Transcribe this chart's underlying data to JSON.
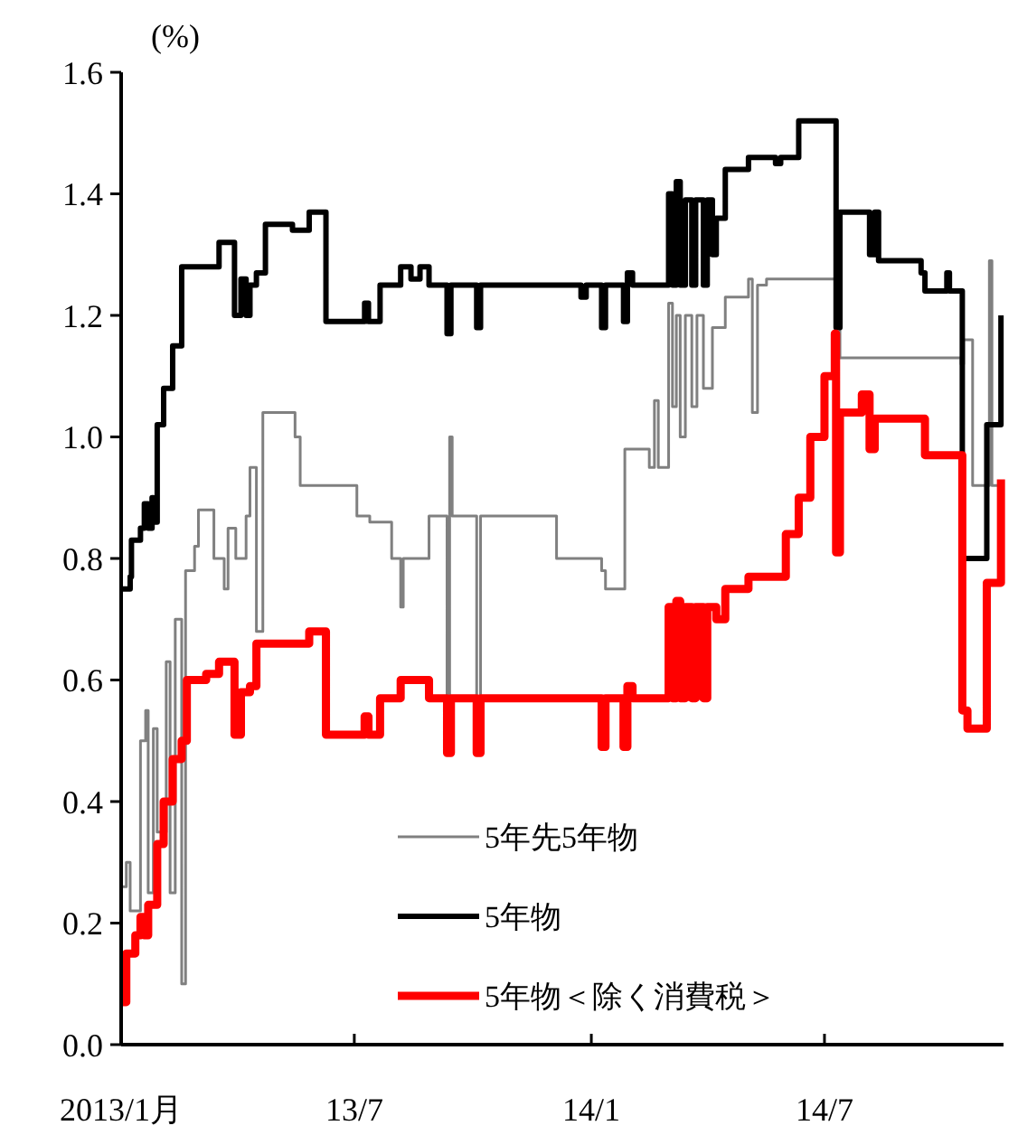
{
  "chart_data": {
    "type": "step",
    "ylabel": "(%)",
    "xlim": [
      "2013-01-01",
      "2014-11-17"
    ],
    "xticks": [
      {
        "value": "2013-01-01",
        "label": "2013/1月"
      },
      {
        "value": "2013-07-01",
        "label": "13/7"
      },
      {
        "value": "2014-01-01",
        "label": "14/1"
      },
      {
        "value": "2014-07-01",
        "label": "14/7"
      }
    ],
    "ylim": [
      0,
      1.6
    ],
    "yticks": [
      {
        "value": 0,
        "label": "0.0"
      },
      0.2,
      0.4,
      0.6,
      0.8,
      {
        "value": 1,
        "label": "1.0"
      },
      1.2,
      1.4,
      1.6
    ],
    "grid": false,
    "legend": "bottom",
    "line_style": "solid",
    "series": [
      {
        "name": "5年先5年物",
        "color": "#808080",
        "x": [
          "2013-01-01",
          "2013-01-05",
          "2013-01-08",
          "2013-01-16",
          "2013-01-20",
          "2013-01-22",
          "2013-01-26",
          "2013-01-29",
          "2013-02-05",
          "2013-02-08",
          "2013-02-12",
          "2013-02-17",
          "2013-02-20",
          "2013-02-27",
          "2013-03-02",
          "2013-03-10",
          "2013-03-14",
          "2013-03-22",
          "2013-03-25",
          "2013-03-31",
          "2013-04-08",
          "2013-04-11",
          "2013-04-16",
          "2013-04-21",
          "2013-05-09",
          "2013-05-16",
          "2013-05-20",
          "2013-07-01",
          "2013-07-03",
          "2013-07-13",
          "2013-07-30",
          "2013-08-06",
          "2013-08-08",
          "2013-08-28",
          "2013-09-11",
          "2013-09-13",
          "2013-09-15",
          "2013-10-04",
          "2013-10-07",
          "2013-12-01",
          "2013-12-05",
          "2014-01-09",
          "2014-01-12",
          "2014-01-26",
          "2014-01-27",
          "2014-02-15",
          "2014-02-19",
          "2014-02-22",
          "2014-03-01",
          "2014-03-02",
          "2014-03-05",
          "2014-03-08",
          "2014-03-11",
          "2014-03-15",
          "2014-03-20",
          "2014-03-24",
          "2014-03-29",
          "2014-04-05",
          "2014-04-15",
          "2014-05-03",
          "2014-05-06",
          "2014-05-10",
          "2014-05-17",
          "2014-07-09",
          "2014-07-13",
          "2014-10-15",
          "2014-10-17",
          "2014-10-24",
          "2014-11-06",
          "2014-11-08",
          "2014-11-15"
        ],
        "values": [
          0.26,
          0.3,
          0.22,
          0.5,
          0.55,
          0.25,
          0.52,
          0.35,
          0.63,
          0.25,
          0.7,
          0.1,
          0.78,
          0.82,
          0.88,
          0.88,
          0.8,
          0.75,
          0.85,
          0.8,
          0.87,
          0.95,
          0.68,
          1.04,
          1.04,
          1.0,
          0.92,
          0.92,
          0.87,
          0.86,
          0.8,
          0.72,
          0.8,
          0.87,
          0.57,
          1.0,
          0.87,
          0.57,
          0.87,
          0.87,
          0.8,
          0.78,
          0.75,
          0.75,
          0.98,
          0.95,
          1.06,
          0.95,
          0.95,
          1.22,
          1.05,
          1.2,
          1.0,
          1.2,
          1.05,
          1.2,
          1.08,
          1.18,
          1.23,
          1.26,
          1.04,
          1.25,
          1.26,
          1.26,
          1.13,
          1.12,
          1.16,
          0.92,
          1.29,
          0.92,
          0.92
        ]
      },
      {
        "name": "5年物",
        "color": "#000000",
        "x": [
          "2013-01-01",
          "2013-01-08",
          "2013-01-09",
          "2013-01-16",
          "2013-01-19",
          "2013-01-22",
          "2013-01-25",
          "2013-01-26",
          "2013-01-29",
          "2013-02-03",
          "2013-02-10",
          "2013-02-17",
          "2013-03-18",
          "2013-03-30",
          "2013-04-04",
          "2013-04-08",
          "2013-04-11",
          "2013-04-16",
          "2013-04-23",
          "2013-05-14",
          "2013-05-27",
          "2013-06-09",
          "2013-07-05",
          "2013-07-09",
          "2013-07-12",
          "2013-07-21",
          "2013-08-06",
          "2013-08-14",
          "2013-08-21",
          "2013-08-28",
          "2013-09-11",
          "2013-09-14",
          "2013-10-04",
          "2013-10-07",
          "2013-12-24",
          "2013-12-28",
          "2014-01-09",
          "2014-01-12",
          "2014-01-26",
          "2014-01-29",
          "2014-02-02",
          "2014-03-02",
          "2014-03-05",
          "2014-03-08",
          "2014-03-11",
          "2014-03-15",
          "2014-03-20",
          "2014-03-23",
          "2014-03-29",
          "2014-04-01",
          "2014-04-05",
          "2014-04-08",
          "2014-04-15",
          "2014-05-03",
          "2014-05-24",
          "2014-05-28",
          "2014-06-11",
          "2014-07-10",
          "2014-07-13",
          "2014-08-05",
          "2014-08-09",
          "2014-08-12",
          "2014-09-14",
          "2014-09-17",
          "2014-10-01",
          "2014-10-04",
          "2014-10-06",
          "2014-10-16",
          "2014-11-04",
          "2014-11-15"
        ],
        "values": [
          0.75,
          0.77,
          0.83,
          0.85,
          0.89,
          0.85,
          0.9,
          0.86,
          1.02,
          1.08,
          1.15,
          1.28,
          1.32,
          1.2,
          1.26,
          1.2,
          1.25,
          1.27,
          1.35,
          1.34,
          1.37,
          1.19,
          1.19,
          1.22,
          1.19,
          1.25,
          1.28,
          1.26,
          1.28,
          1.25,
          1.17,
          1.25,
          1.18,
          1.25,
          1.23,
          1.25,
          1.18,
          1.25,
          1.19,
          1.27,
          1.25,
          1.4,
          1.25,
          1.42,
          1.25,
          1.39,
          1.25,
          1.39,
          1.25,
          1.39,
          1.3,
          1.36,
          1.44,
          1.46,
          1.45,
          1.46,
          1.52,
          1.18,
          1.37,
          1.3,
          1.37,
          1.29,
          1.27,
          1.24,
          1.24,
          1.27,
          1.24,
          0.8,
          1.02,
          1.2
        ]
      },
      {
        "name": "5年物＜除く消費税＞",
        "color": "#ff0000",
        "x": [
          "2013-01-01",
          "2013-01-05",
          "2013-01-12",
          "2013-01-16",
          "2013-01-19",
          "2013-01-22",
          "2013-01-29",
          "2013-02-03",
          "2013-02-10",
          "2013-02-17",
          "2013-02-21",
          "2013-03-08",
          "2013-03-18",
          "2013-03-30",
          "2013-04-04",
          "2013-04-11",
          "2013-04-16",
          "2013-05-14",
          "2013-05-27",
          "2013-06-09",
          "2013-07-05",
          "2013-07-09",
          "2013-07-12",
          "2013-07-21",
          "2013-08-06",
          "2013-08-21",
          "2013-08-28",
          "2013-09-11",
          "2013-09-14",
          "2013-10-04",
          "2013-10-07",
          "2014-01-09",
          "2014-01-12",
          "2014-01-26",
          "2014-01-29",
          "2014-02-02",
          "2014-03-02",
          "2014-03-05",
          "2014-03-08",
          "2014-03-11",
          "2014-03-15",
          "2014-03-20",
          "2014-03-23",
          "2014-03-29",
          "2014-04-01",
          "2014-04-08",
          "2014-04-15",
          "2014-05-03",
          "2014-05-29",
          "2014-06-01",
          "2014-06-11",
          "2014-06-20",
          "2014-07-01",
          "2014-07-09",
          "2014-07-10",
          "2014-07-13",
          "2014-07-30",
          "2014-08-05",
          "2014-08-09",
          "2014-09-17",
          "2014-10-16",
          "2014-10-20",
          "2014-11-04",
          "2014-11-15"
        ],
        "values": [
          0.07,
          0.15,
          0.18,
          0.21,
          0.18,
          0.23,
          0.33,
          0.4,
          0.47,
          0.5,
          0.6,
          0.61,
          0.63,
          0.51,
          0.58,
          0.59,
          0.66,
          0.66,
          0.68,
          0.51,
          0.51,
          0.54,
          0.51,
          0.57,
          0.6,
          0.6,
          0.57,
          0.48,
          0.57,
          0.48,
          0.57,
          0.49,
          0.57,
          0.49,
          0.59,
          0.57,
          0.72,
          0.57,
          0.73,
          0.57,
          0.72,
          0.57,
          0.72,
          0.57,
          0.72,
          0.7,
          0.75,
          0.77,
          0.77,
          0.84,
          0.9,
          1.0,
          1.1,
          1.17,
          0.81,
          1.04,
          1.07,
          0.98,
          1.03,
          0.97,
          0.55,
          0.52,
          0.76,
          0.93
        ]
      }
    ]
  }
}
